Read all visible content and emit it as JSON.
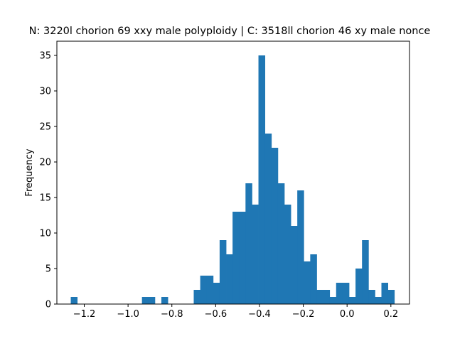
{
  "chart_data": {
    "type": "bar",
    "title": "N: 3220l chorion 69 xxy male polyploidy | C: 3518ll chorion 46 xy male nonce",
    "xlabel": "",
    "ylabel": "Frequency",
    "xlim": [
      -1.325,
      0.285
    ],
    "ylim": [
      0,
      37
    ],
    "xticks": [
      -1.2,
      -1.0,
      -0.8,
      -0.6,
      -0.4,
      -0.2,
      0.0,
      0.2
    ],
    "xtick_labels": [
      "−1.2",
      "−1.0",
      "−0.8",
      "−0.6",
      "−0.4",
      "−0.2",
      "0.0",
      "0.2"
    ],
    "yticks": [
      0,
      5,
      10,
      15,
      20,
      25,
      30,
      35
    ],
    "ytick_labels": [
      "0",
      "5",
      "10",
      "15",
      "20",
      "25",
      "30",
      "35"
    ],
    "bar_color": "#1f77b4",
    "grid": false,
    "bins": {
      "start": -1.2616,
      "width": 0.02955,
      "counts": [
        1,
        0,
        0,
        0,
        0,
        0,
        0,
        0,
        0,
        0,
        0,
        1,
        1,
        0,
        1,
        0,
        0,
        0,
        0,
        2,
        4,
        4,
        3,
        9,
        7,
        13,
        13,
        17,
        14,
        35,
        24,
        22,
        17,
        14,
        11,
        16,
        6,
        7,
        2,
        2,
        1,
        3,
        3,
        1,
        5,
        9,
        2,
        1,
        3,
        2
      ]
    }
  }
}
